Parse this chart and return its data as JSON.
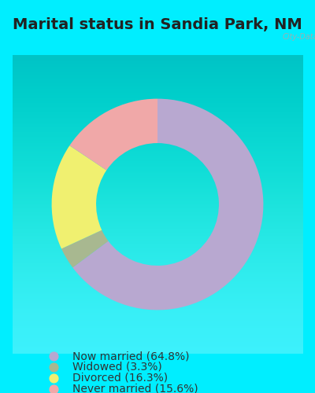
{
  "title": "Marital status in Sandia Park, NM",
  "title_fontsize": 14,
  "title_fontweight": "bold",
  "title_color": "#222222",
  "watermark": "City-Data.com",
  "background_color": "#00eeff",
  "chart_panel_color_top": "#e8f5e8",
  "chart_panel_color_bottom": "#f8fff8",
  "slices": [
    {
      "label": "Now married (64.8%)",
      "value": 64.8,
      "color": "#b8a8d0"
    },
    {
      "label": "Widowed (3.3%)",
      "value": 3.3,
      "color": "#a8b890"
    },
    {
      "label": "Divorced (16.3%)",
      "value": 16.3,
      "color": "#f0f070"
    },
    {
      "label": "Never married (15.6%)",
      "value": 15.6,
      "color": "#f0a8a8"
    }
  ],
  "donut_width": 0.42,
  "start_angle": 90,
  "legend_fontsize": 10,
  "legend_text_color": "#333333"
}
